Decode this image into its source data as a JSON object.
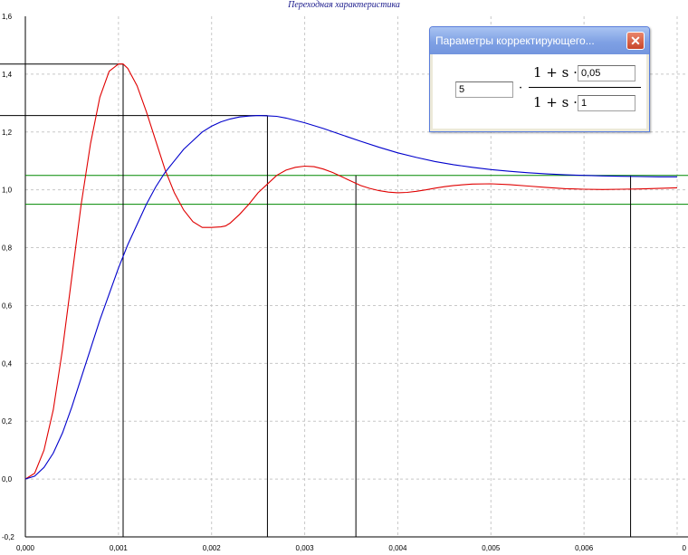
{
  "title": "Переходная характеристика",
  "chart_data": {
    "type": "line",
    "title": "Переходная характеристика",
    "xlim": [
      0,
      0.007
    ],
    "ylim": [
      -0.2,
      1.6
    ],
    "grid": true,
    "x_ticks": [
      "0,000",
      "0,001",
      "0,002",
      "0,003",
      "0,004",
      "0,005",
      "0,006",
      "0"
    ],
    "y_ticks": [
      "-0,2",
      "0,0",
      "0,2",
      "0,4",
      "0,6",
      "0,8",
      "1,0",
      "1,2",
      "1,4",
      "1,6"
    ],
    "series": [
      {
        "color": "#e00000",
        "x": [
          0,
          0.0001,
          0.0002,
          0.0003,
          0.0004,
          0.0005,
          0.0006,
          0.0007,
          0.0008,
          0.0009,
          0.001,
          0.00105,
          0.0011,
          0.0012,
          0.0013,
          0.0014,
          0.0015,
          0.0016,
          0.0017,
          0.0018,
          0.0019,
          0.002,
          0.0021,
          0.00215,
          0.0022,
          0.0023,
          0.0024,
          0.0025,
          0.0026,
          0.0027,
          0.0028,
          0.0029,
          0.003,
          0.0031,
          0.0032,
          0.0033,
          0.0034,
          0.0035,
          0.0036,
          0.0037,
          0.0038,
          0.0039,
          0.004,
          0.0041,
          0.0042,
          0.0043,
          0.0044,
          0.0045,
          0.0046,
          0.0048,
          0.005,
          0.0052,
          0.0054,
          0.0056,
          0.0058,
          0.006,
          0.0062,
          0.0064,
          0.0066,
          0.0068,
          0.007
        ],
        "y": [
          0,
          0.02,
          0.1,
          0.24,
          0.45,
          0.7,
          0.95,
          1.16,
          1.32,
          1.41,
          1.435,
          1.435,
          1.42,
          1.36,
          1.27,
          1.17,
          1.07,
          0.99,
          0.93,
          0.89,
          0.87,
          0.87,
          0.872,
          0.875,
          0.885,
          0.915,
          0.95,
          0.99,
          1.02,
          1.05,
          1.068,
          1.078,
          1.082,
          1.08,
          1.072,
          1.06,
          1.045,
          1.03,
          1.015,
          1.005,
          0.997,
          0.992,
          0.99,
          0.991,
          0.995,
          1.0,
          1.006,
          1.011,
          1.015,
          1.02,
          1.021,
          1.018,
          1.013,
          1.008,
          1.004,
          1.002,
          1.001,
          1.002,
          1.003,
          1.005,
          1.007
        ]
      },
      {
        "color": "#0000cc",
        "x": [
          0,
          0.0001,
          0.0002,
          0.0003,
          0.0004,
          0.0005,
          0.0006,
          0.0007,
          0.0008,
          0.0009,
          0.001,
          0.0011,
          0.0012,
          0.0013,
          0.0014,
          0.0015,
          0.0016,
          0.0017,
          0.0018,
          0.0019,
          0.002,
          0.0021,
          0.0022,
          0.0023,
          0.0024,
          0.0025,
          0.0026,
          0.0027,
          0.0028,
          0.0029,
          0.003,
          0.0032,
          0.0034,
          0.0036,
          0.0038,
          0.004,
          0.0042,
          0.0044,
          0.0046,
          0.0048,
          0.005,
          0.0052,
          0.0054,
          0.0056,
          0.0058,
          0.006,
          0.0062,
          0.0064,
          0.0066,
          0.0068,
          0.007
        ],
        "y": [
          0,
          0.01,
          0.04,
          0.09,
          0.16,
          0.25,
          0.35,
          0.45,
          0.55,
          0.64,
          0.73,
          0.81,
          0.88,
          0.95,
          1.01,
          1.06,
          1.1,
          1.14,
          1.17,
          1.2,
          1.22,
          1.235,
          1.245,
          1.252,
          1.255,
          1.257,
          1.256,
          1.254,
          1.248,
          1.24,
          1.232,
          1.212,
          1.19,
          1.168,
          1.147,
          1.128,
          1.112,
          1.098,
          1.087,
          1.078,
          1.07,
          1.064,
          1.059,
          1.055,
          1.052,
          1.05,
          1.048,
          1.047,
          1.046,
          1.045,
          1.045
        ]
      }
    ],
    "green_lines": [
      1.05,
      0.95
    ],
    "marker_lines": [
      {
        "x": 0.00105,
        "y": 1.435
      },
      {
        "x": 0.0026,
        "y": 1.257
      },
      {
        "x": 0.00355,
        "y": 1.05
      },
      {
        "x": 0.0065,
        "y": 1.05
      }
    ]
  },
  "dialog": {
    "title": "Параметры корректирующего...",
    "close_glyph": "✕",
    "gain_value": "5",
    "num_text": "1 + s ·",
    "num_value": "0,05",
    "den_text": "1 + s ·",
    "den_value": "1",
    "mult_glyph": "·"
  }
}
